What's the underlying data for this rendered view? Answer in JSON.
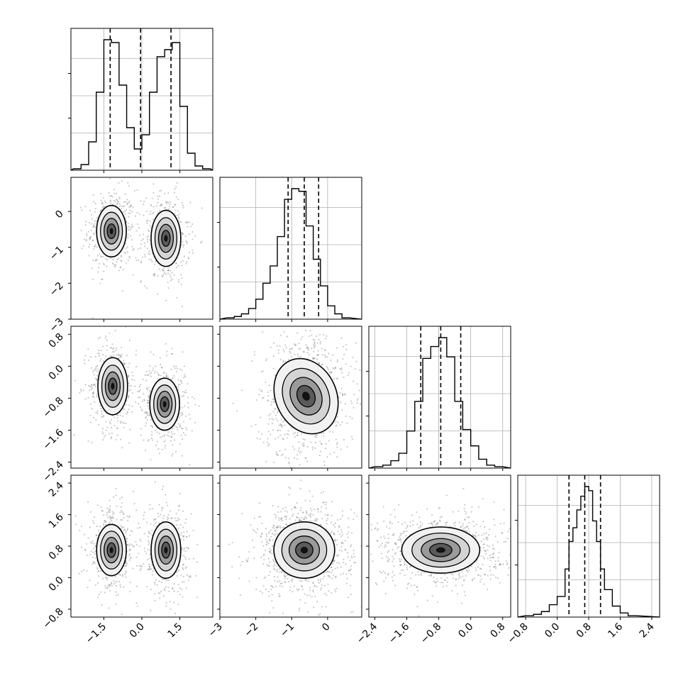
{
  "chart_data": {
    "type": "corner",
    "n_params": 4,
    "grid": true,
    "params": [
      {
        "index": 0,
        "range": [
          -2.8,
          2.8
        ],
        "quantiles": [
          -1.25,
          -0.05,
          1.15
        ],
        "hist_bins": [
          -2.7,
          -2.4,
          -2.1,
          -1.8,
          -1.5,
          -1.2,
          -0.9,
          -0.6,
          -0.3,
          0.0,
          0.3,
          0.6,
          0.9,
          1.2,
          1.5,
          1.8,
          2.1,
          2.4
        ],
        "hist_counts": [
          0.01,
          0.04,
          0.2,
          0.55,
          0.92,
          0.9,
          0.6,
          0.3,
          0.15,
          0.25,
          0.55,
          0.8,
          0.85,
          0.9,
          0.45,
          0.12,
          0.03,
          0.01
        ],
        "ticks": [
          -1.5,
          0.0,
          1.5
        ],
        "tick_labels": [
          "−1.5",
          "0.0",
          "1.5"
        ]
      },
      {
        "index": 1,
        "range": [
          -3.0,
          0.95
        ],
        "quantiles": [
          -1.1,
          -0.65,
          -0.25
        ],
        "hist_bins": [
          -2.8,
          -2.6,
          -2.4,
          -2.2,
          -2.0,
          -1.8,
          -1.6,
          -1.4,
          -1.2,
          -1.0,
          -0.8,
          -0.6,
          -0.4,
          -0.2,
          0.0,
          0.2,
          0.4
        ],
        "hist_counts": [
          0.01,
          0.02,
          0.04,
          0.08,
          0.15,
          0.27,
          0.4,
          0.62,
          0.9,
          0.98,
          0.96,
          0.7,
          0.45,
          0.25,
          0.1,
          0.04,
          0.01
        ],
        "ticks": [
          -3,
          -2,
          -1,
          0
        ],
        "tick_labels": [
          "−3",
          "−2",
          "−1",
          "0"
        ]
      },
      {
        "index": 2,
        "range": [
          -2.55,
          1.0
        ],
        "quantiles": [
          -1.25,
          -0.75,
          -0.25
        ],
        "hist_bins": [
          -2.4,
          -2.2,
          -2.0,
          -1.8,
          -1.6,
          -1.4,
          -1.2,
          -1.0,
          -0.8,
          -0.6,
          -0.4,
          -0.2,
          0.0,
          0.2,
          0.4,
          0.6
        ],
        "hist_counts": [
          0.01,
          0.02,
          0.05,
          0.1,
          0.25,
          0.45,
          0.74,
          0.82,
          0.88,
          0.75,
          0.45,
          0.26,
          0.15,
          0.06,
          0.02,
          0.01
        ],
        "ticks": [
          -2.4,
          -1.6,
          -0.8,
          0.0,
          0.8
        ],
        "tick_labels": [
          "−2.4",
          "−1.6",
          "−0.8",
          "0.0",
          "0.8"
        ]
      },
      {
        "index": 3,
        "range": [
          -1.0,
          2.6
        ],
        "quantiles": [
          0.3,
          0.7,
          1.1
        ],
        "hist_bins": [
          -0.8,
          -0.6,
          -0.4,
          -0.2,
          0.0,
          0.2,
          0.3,
          0.4,
          0.5,
          0.6,
          0.7,
          0.8,
          0.9,
          1.0,
          1.1,
          1.2,
          1.4,
          1.6,
          1.8
        ],
        "hist_counts": [
          0.01,
          0.02,
          0.04,
          0.09,
          0.15,
          0.35,
          0.55,
          0.65,
          0.78,
          0.88,
          0.95,
          0.92,
          0.7,
          0.55,
          0.35,
          0.2,
          0.08,
          0.03,
          0.01
        ],
        "ticks": [
          -0.8,
          0.0,
          0.8,
          1.6,
          2.4
        ],
        "tick_labels": [
          "−0.8",
          "0.0",
          "0.8",
          "1.6",
          "2.4"
        ]
      }
    ],
    "pairs": [
      {
        "row": 1,
        "col": 0,
        "modes": [
          {
            "cx": -1.2,
            "cy": -0.55,
            "sx": 0.45,
            "sy": 0.55,
            "rot": 0
          },
          {
            "cx": 0.95,
            "cy": -0.75,
            "sx": 0.45,
            "sy": 0.6,
            "rot": 0
          }
        ]
      },
      {
        "row": 2,
        "col": 0,
        "modes": [
          {
            "cx": -1.15,
            "cy": -0.5,
            "sx": 0.45,
            "sy": 0.55,
            "rot": 0
          },
          {
            "cx": 0.9,
            "cy": -0.95,
            "sx": 0.45,
            "sy": 0.5,
            "rot": 0
          }
        ]
      },
      {
        "row": 2,
        "col": 1,
        "modes": [
          {
            "cx": -0.6,
            "cy": -0.75,
            "sx": 0.65,
            "sy": 0.75,
            "rot": 25
          }
        ]
      },
      {
        "row": 3,
        "col": 0,
        "modes": [
          {
            "cx": -1.2,
            "cy": 0.7,
            "sx": 0.45,
            "sy": 0.5,
            "rot": 0
          },
          {
            "cx": 0.95,
            "cy": 0.7,
            "sx": 0.45,
            "sy": 0.55,
            "rot": 0
          }
        ]
      },
      {
        "row": 3,
        "col": 1,
        "modes": [
          {
            "cx": -0.65,
            "cy": 0.7,
            "sx": 0.65,
            "sy": 0.55,
            "rot": 0
          }
        ]
      },
      {
        "row": 3,
        "col": 2,
        "modes": [
          {
            "cx": -0.75,
            "cy": 0.7,
            "sx": 0.75,
            "sy": 0.45,
            "rot": 0
          }
        ]
      }
    ]
  }
}
